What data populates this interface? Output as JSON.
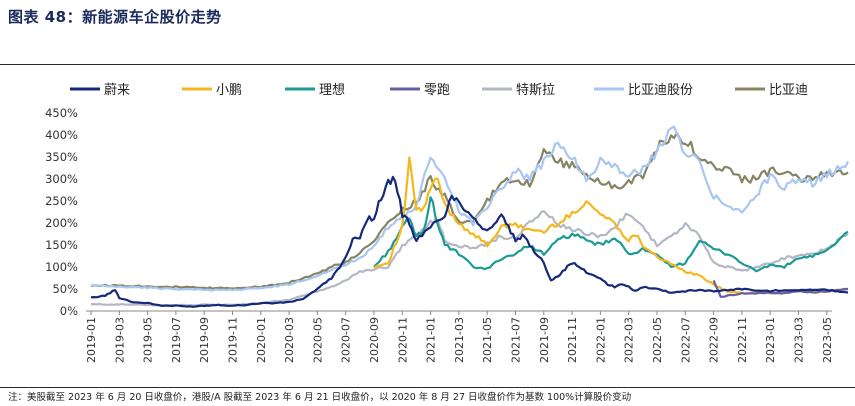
{
  "title": "图表 48：新能源车企股价走势",
  "note": "注：美股截至 2023 年 6 月 20 日收盘价，港股/A 股截至 2023 年 6 月 21 日收盘价，以 2020 年 8 月 27 日收盘价作为基数 100%计算股价变动",
  "chart_data": {
    "type": "line",
    "title": "",
    "xlabel": "",
    "ylabel": "",
    "ylim": [
      0,
      450
    ],
    "ytick_values": [
      0,
      50,
      100,
      150,
      200,
      250,
      300,
      350,
      400,
      450
    ],
    "ytick_labels": [
      "0%",
      "50%",
      "100%",
      "150%",
      "200%",
      "250%",
      "300%",
      "350%",
      "400%",
      "450%"
    ],
    "x_labels": [
      "2019-01",
      "2019-03",
      "2019-05",
      "2019-07",
      "2019-09",
      "2019-11",
      "2020-01",
      "2020-03",
      "2020-05",
      "2020-07",
      "2020-09",
      "2020-11",
      "2021-01",
      "2021-03",
      "2021-05",
      "2021-07",
      "2021-09",
      "2021-11",
      "2022-01",
      "2022-03",
      "2022-05",
      "2022-07",
      "2022-09",
      "2022-11",
      "2023-01",
      "2023-03",
      "2023-05"
    ],
    "x_range_months": [
      0,
      29.7
    ],
    "legend_position": "top",
    "grid": false,
    "series": [
      {
        "name": "蔚来",
        "color": "#15297a",
        "points": [
          [
            0,
            30
          ],
          [
            1,
            35
          ],
          [
            1.7,
            48
          ],
          [
            2,
            30
          ],
          [
            3,
            20
          ],
          [
            4,
            18
          ],
          [
            5,
            12
          ],
          [
            6,
            12
          ],
          [
            7,
            10
          ],
          [
            8,
            12
          ],
          [
            9,
            14
          ],
          [
            10,
            12
          ],
          [
            11,
            14
          ],
          [
            12,
            18
          ],
          [
            13,
            18
          ],
          [
            14,
            20
          ],
          [
            15,
            28
          ],
          [
            16,
            50
          ],
          [
            17,
            75
          ],
          [
            18,
            120
          ],
          [
            18.5,
            160
          ],
          [
            19,
            170
          ],
          [
            19.5,
            210
          ],
          [
            20,
            210
          ],
          [
            20.5,
            260
          ],
          [
            21,
            290
          ],
          [
            21.5,
            300
          ],
          [
            22,
            220
          ],
          [
            22.5,
            200
          ],
          [
            23,
            160
          ],
          [
            24,
            190
          ],
          [
            25,
            220
          ],
          [
            25.5,
            260
          ],
          [
            26,
            250
          ],
          [
            26.5,
            230
          ],
          [
            27,
            215
          ],
          [
            27.5,
            195
          ],
          [
            28,
            180
          ],
          [
            28.5,
            200
          ],
          [
            29,
            215
          ],
          [
            29.5,
            190
          ],
          [
            30,
            160
          ],
          [
            30.5,
            170
          ],
          [
            31,
            150
          ],
          [
            31.5,
            130
          ],
          [
            32,
            110
          ],
          [
            32.5,
            70
          ],
          [
            33,
            80
          ],
          [
            33.5,
            95
          ],
          [
            34,
            110
          ],
          [
            34.5,
            100
          ],
          [
            35,
            88
          ],
          [
            36,
            75
          ],
          [
            36.5,
            60
          ],
          [
            37,
            55
          ],
          [
            37.5,
            60
          ],
          [
            38,
            55
          ],
          [
            38.5,
            45
          ],
          [
            39,
            55
          ],
          [
            40,
            50
          ],
          [
            41,
            42
          ],
          [
            42,
            45
          ],
          [
            43,
            48
          ],
          [
            44,
            45
          ],
          [
            45,
            48
          ],
          [
            46,
            50
          ],
          [
            47,
            47
          ],
          [
            48,
            45
          ],
          [
            49,
            48
          ],
          [
            52,
            48
          ],
          [
            53.5,
            42
          ]
        ]
      },
      {
        "name": "小鹏",
        "color": "#f2b81d",
        "points": [
          [
            20,
            100
          ],
          [
            21,
            110
          ],
          [
            22,
            190
          ],
          [
            22.5,
            340
          ],
          [
            23,
            230
          ],
          [
            23.5,
            230
          ],
          [
            24,
            280
          ],
          [
            24.5,
            300
          ],
          [
            25,
            240
          ],
          [
            26,
            200
          ],
          [
            27,
            175
          ],
          [
            28,
            150
          ],
          [
            29,
            190
          ],
          [
            30,
            195
          ],
          [
            31,
            185
          ],
          [
            32,
            180
          ],
          [
            33,
            200
          ],
          [
            34,
            220
          ],
          [
            35,
            250
          ],
          [
            36,
            220
          ],
          [
            37,
            200
          ],
          [
            38,
            160
          ],
          [
            38.5,
            175
          ],
          [
            39,
            150
          ],
          [
            40,
            125
          ],
          [
            41,
            105
          ],
          [
            42,
            90
          ],
          [
            43,
            80
          ],
          [
            44,
            60
          ],
          [
            45,
            45
          ],
          [
            46,
            40
          ],
          [
            47,
            42
          ],
          [
            48,
            40
          ],
          [
            49,
            42
          ],
          [
            50,
            45
          ],
          [
            51,
            42
          ],
          [
            52,
            45
          ],
          [
            53.5,
            50
          ]
        ]
      },
      {
        "name": "理想",
        "color": "#1d9a95",
        "points": [
          [
            20,
            100
          ],
          [
            21,
            135
          ],
          [
            22,
            190
          ],
          [
            22.5,
            210
          ],
          [
            23,
            170
          ],
          [
            23.5,
            180
          ],
          [
            24,
            260
          ],
          [
            24.5,
            200
          ],
          [
            25,
            150
          ],
          [
            26,
            130
          ],
          [
            27,
            100
          ],
          [
            28,
            95
          ],
          [
            29,
            120
          ],
          [
            30,
            130
          ],
          [
            31,
            150
          ],
          [
            32,
            130
          ],
          [
            33,
            160
          ],
          [
            34,
            175
          ],
          [
            35,
            160
          ],
          [
            36,
            150
          ],
          [
            37,
            165
          ],
          [
            38,
            130
          ],
          [
            39,
            140
          ],
          [
            40,
            125
          ],
          [
            41,
            100
          ],
          [
            42,
            110
          ],
          [
            43,
            160
          ],
          [
            44,
            140
          ],
          [
            45,
            130
          ],
          [
            46,
            110
          ],
          [
            47,
            90
          ],
          [
            48,
            105
          ],
          [
            49,
            100
          ],
          [
            50,
            120
          ],
          [
            51,
            125
          ],
          [
            52,
            135
          ],
          [
            53.5,
            180
          ]
        ]
      },
      {
        "name": "零跑",
        "color": "#6460a6",
        "points": [
          [
            44,
            70
          ],
          [
            44.5,
            32
          ],
          [
            45,
            35
          ],
          [
            46,
            40
          ],
          [
            47,
            40
          ],
          [
            48,
            42
          ],
          [
            49,
            40
          ],
          [
            50,
            45
          ],
          [
            51,
            42
          ],
          [
            52,
            45
          ],
          [
            53.5,
            50
          ]
        ]
      },
      {
        "name": "特斯拉",
        "color": "#b3b8c4",
        "points": [
          [
            0,
            15
          ],
          [
            2,
            15
          ],
          [
            4,
            14
          ],
          [
            6,
            13
          ],
          [
            8,
            14
          ],
          [
            10,
            14
          ],
          [
            12,
            17
          ],
          [
            13,
            22
          ],
          [
            14,
            25
          ],
          [
            15,
            35
          ],
          [
            16,
            45
          ],
          [
            17,
            55
          ],
          [
            18,
            70
          ],
          [
            19,
            90
          ],
          [
            20,
            95
          ],
          [
            21,
            100
          ],
          [
            22,
            150
          ],
          [
            23,
            170
          ],
          [
            24,
            200
          ],
          [
            24.5,
            210
          ],
          [
            25,
            160
          ],
          [
            26,
            150
          ],
          [
            27,
            140
          ],
          [
            28,
            155
          ],
          [
            29,
            170
          ],
          [
            30,
            165
          ],
          [
            31,
            200
          ],
          [
            32,
            230
          ],
          [
            33,
            195
          ],
          [
            34,
            185
          ],
          [
            35,
            175
          ],
          [
            36,
            170
          ],
          [
            37,
            190
          ],
          [
            38,
            225
          ],
          [
            39,
            190
          ],
          [
            40,
            150
          ],
          [
            41,
            170
          ],
          [
            42,
            195
          ],
          [
            43,
            170
          ],
          [
            44,
            110
          ],
          [
            45,
            100
          ],
          [
            46,
            90
          ],
          [
            47,
            100
          ],
          [
            48,
            110
          ],
          [
            49,
            120
          ],
          [
            50,
            125
          ],
          [
            51,
            130
          ],
          [
            52,
            140
          ],
          [
            53.5,
            175
          ]
        ]
      },
      {
        "name": "比亚迪股份",
        "color": "#a8c6f4",
        "points": [
          [
            0,
            58
          ],
          [
            2,
            55
          ],
          [
            4,
            53
          ],
          [
            6,
            50
          ],
          [
            8,
            48
          ],
          [
            10,
            48
          ],
          [
            12,
            52
          ],
          [
            13,
            56
          ],
          [
            14,
            60
          ],
          [
            15,
            70
          ],
          [
            16,
            80
          ],
          [
            17,
            95
          ],
          [
            18,
            105
          ],
          [
            19,
            120
          ],
          [
            20,
            150
          ],
          [
            21,
            190
          ],
          [
            22,
            210
          ],
          [
            23,
            240
          ],
          [
            24,
            350
          ],
          [
            25,
            300
          ],
          [
            26,
            230
          ],
          [
            27,
            200
          ],
          [
            28,
            240
          ],
          [
            29,
            280
          ],
          [
            30,
            320
          ],
          [
            31,
            300
          ],
          [
            32,
            340
          ],
          [
            33,
            380
          ],
          [
            34,
            350
          ],
          [
            35,
            300
          ],
          [
            36,
            340
          ],
          [
            37,
            330
          ],
          [
            38,
            310
          ],
          [
            39,
            320
          ],
          [
            40,
            360
          ],
          [
            41,
            420
          ],
          [
            42,
            360
          ],
          [
            43,
            340
          ],
          [
            44,
            260
          ],
          [
            45,
            240
          ],
          [
            46,
            230
          ],
          [
            47,
            260
          ],
          [
            48,
            310
          ],
          [
            49,
            280
          ],
          [
            50,
            300
          ],
          [
            51,
            290
          ],
          [
            52,
            310
          ],
          [
            53.5,
            340
          ]
        ]
      },
      {
        "name": "比亚迪",
        "color": "#868463",
        "points": [
          [
            0,
            58
          ],
          [
            2,
            58
          ],
          [
            4,
            56
          ],
          [
            6,
            55
          ],
          [
            8,
            52
          ],
          [
            10,
            52
          ],
          [
            12,
            55
          ],
          [
            13,
            60
          ],
          [
            14,
            65
          ],
          [
            15,
            75
          ],
          [
            16,
            85
          ],
          [
            17,
            100
          ],
          [
            18,
            110
          ],
          [
            19,
            130
          ],
          [
            20,
            160
          ],
          [
            21,
            200
          ],
          [
            22,
            230
          ],
          [
            23,
            250
          ],
          [
            24,
            300
          ],
          [
            25,
            260
          ],
          [
            26,
            200
          ],
          [
            27,
            200
          ],
          [
            28,
            250
          ],
          [
            29,
            290
          ],
          [
            30,
            300
          ],
          [
            31,
            290
          ],
          [
            32,
            360
          ],
          [
            33,
            340
          ],
          [
            34,
            330
          ],
          [
            35,
            310
          ],
          [
            36,
            295
          ],
          [
            37,
            280
          ],
          [
            38,
            290
          ],
          [
            39,
            310
          ],
          [
            40,
            370
          ],
          [
            41,
            400
          ],
          [
            42,
            390
          ],
          [
            43,
            350
          ],
          [
            44,
            330
          ],
          [
            45,
            320
          ],
          [
            46,
            300
          ],
          [
            47,
            300
          ],
          [
            48,
            320
          ],
          [
            49,
            310
          ],
          [
            50,
            300
          ],
          [
            51,
            305
          ],
          [
            52,
            310
          ],
          [
            53.5,
            315
          ]
        ]
      }
    ]
  }
}
